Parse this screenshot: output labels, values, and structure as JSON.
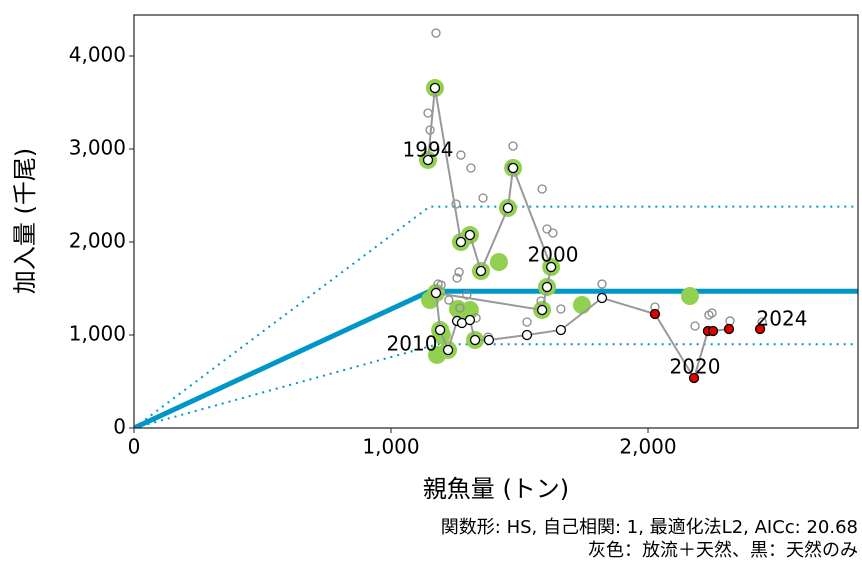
{
  "chart_data": {
    "type": "scatter",
    "xlabel": "親魚量 (トン)",
    "ylabel": "加入量 (千尾)",
    "caption": [
      "関数形: HS, 自己相関: 1, 最適化法L2, AICc: 20.68",
      "灰色：放流＋天然、黒：天然のみ"
    ],
    "annotations": [
      "1994",
      "2000",
      "2010",
      "2020",
      "2024"
    ],
    "xlim": [
      0,
      2817
    ],
    "ylim": [
      0,
      4441
    ],
    "xticks": [
      0,
      {
        "value": 1000,
        "label": "1,000"
      },
      {
        "value": 2000,
        "label": "2,000"
      }
    ],
    "yticks": [
      0,
      {
        "value": 1000,
        "label": "1,000"
      },
      {
        "value": 2000,
        "label": "2,000"
      },
      {
        "value": 3000,
        "label": "3,000"
      },
      {
        "value": 4000,
        "label": "4,000"
      }
    ],
    "series": [
      {
        "style": "filled",
        "color": "#92d050",
        "x": [
          1144,
          1171,
          1272,
          1307,
          1350,
          1420,
          1455,
          1475,
          1623,
          1607,
          1588,
          1743,
          2163,
          1175,
          1152,
          1191,
          1222,
          1179,
          1276,
          1307,
          1327,
          1198,
          1260
        ],
        "y": [
          2882,
          3656,
          2000,
          2075,
          1688,
          1785,
          2366,
          2796,
          1731,
          1516,
          1269,
          1323,
          1419,
          1452,
          1376,
          1054,
          839,
          785,
          1247,
          1269,
          946,
          1000,
          1280
        ]
      },
      {
        "style": "open",
        "color": "#8c8c8c",
        "x": [
          1175,
          1144,
          1152,
          1272,
          1311,
          1467,
          1475,
          1358,
          1253,
          1588,
          1607,
          1630,
          1265,
          1257,
          1183,
          1195,
          1268,
          1378,
          1529,
          1661,
          1821,
          2027,
          2183,
          2237,
          2249,
          2319,
          2444,
          1584,
          1331,
          1225,
          1295
        ],
        "y": [
          4247,
          3387,
          3204,
          2935,
          2796,
          2806,
          3032,
          2473,
          2409,
          2570,
          2140,
          2097,
          1677,
          1613,
          1548,
          1538,
          1290,
          978,
          1140,
          1280,
          1548,
          1301,
          1097,
          1215,
          1237,
          1151,
          1140,
          1366,
          1183,
          1376,
          1430
        ]
      },
      {
        "style": "line",
        "color": "#999999",
        "fill": "#ffffff",
        "fills": [
          "#ffffff",
          "#ffffff",
          "#ffffff",
          "#ffffff",
          "#ffffff",
          "#ffffff",
          "#ffffff",
          "#ffffff",
          "#ffffff",
          "#ffffff",
          "#ffffff",
          "#ffffff",
          "#ffffff",
          "#ffffff",
          "#ffffff",
          "#ffffff",
          "#ffffff",
          "#ffffff",
          "#ffffff",
          "#ffffff",
          "#ffffff",
          "#e00000",
          "#e00000",
          "#e00000",
          "#e00000",
          "#e00000"
        ],
        "x": [
          1144,
          1171,
          1272,
          1307,
          1350,
          1455,
          1475,
          1623,
          1607,
          1588,
          1175,
          1191,
          1222,
          1257,
          1276,
          1307,
          1327,
          1381,
          1529,
          1661,
          1821,
          2027,
          2179,
          2233,
          2253,
          2315
        ],
        "y": [
          2882,
          3656,
          2000,
          2075,
          1688,
          2366,
          2796,
          1731,
          1516,
          1269,
          1452,
          1054,
          839,
          1151,
          1129,
          1161,
          946,
          946,
          1000,
          1054,
          1398,
          1226,
          538,
          1043,
          1043,
          1065
        ]
      },
      {
        "style": "fit",
        "color": "#0096c8",
        "width": 5,
        "dash": "none",
        "x": [
          0,
          1150,
          2817
        ],
        "y": [
          0,
          1470,
          1470
        ]
      },
      {
        "style": "fit",
        "color": "#0096c8",
        "width": 2,
        "dash": "2 5",
        "x": [
          0,
          1150,
          2817
        ],
        "y": [
          0,
          2380,
          2380
        ]
      },
      {
        "style": "fit",
        "color": "#0096c8",
        "width": 2,
        "dash": "2 5",
        "x": [
          0,
          1180,
          2817
        ],
        "y": [
          0,
          900,
          900
        ]
      },
      {
        "style": "filled-outlined",
        "color": "#e00000",
        "x": [
          2436
        ],
        "y": [
          1065
        ]
      }
    ]
  }
}
